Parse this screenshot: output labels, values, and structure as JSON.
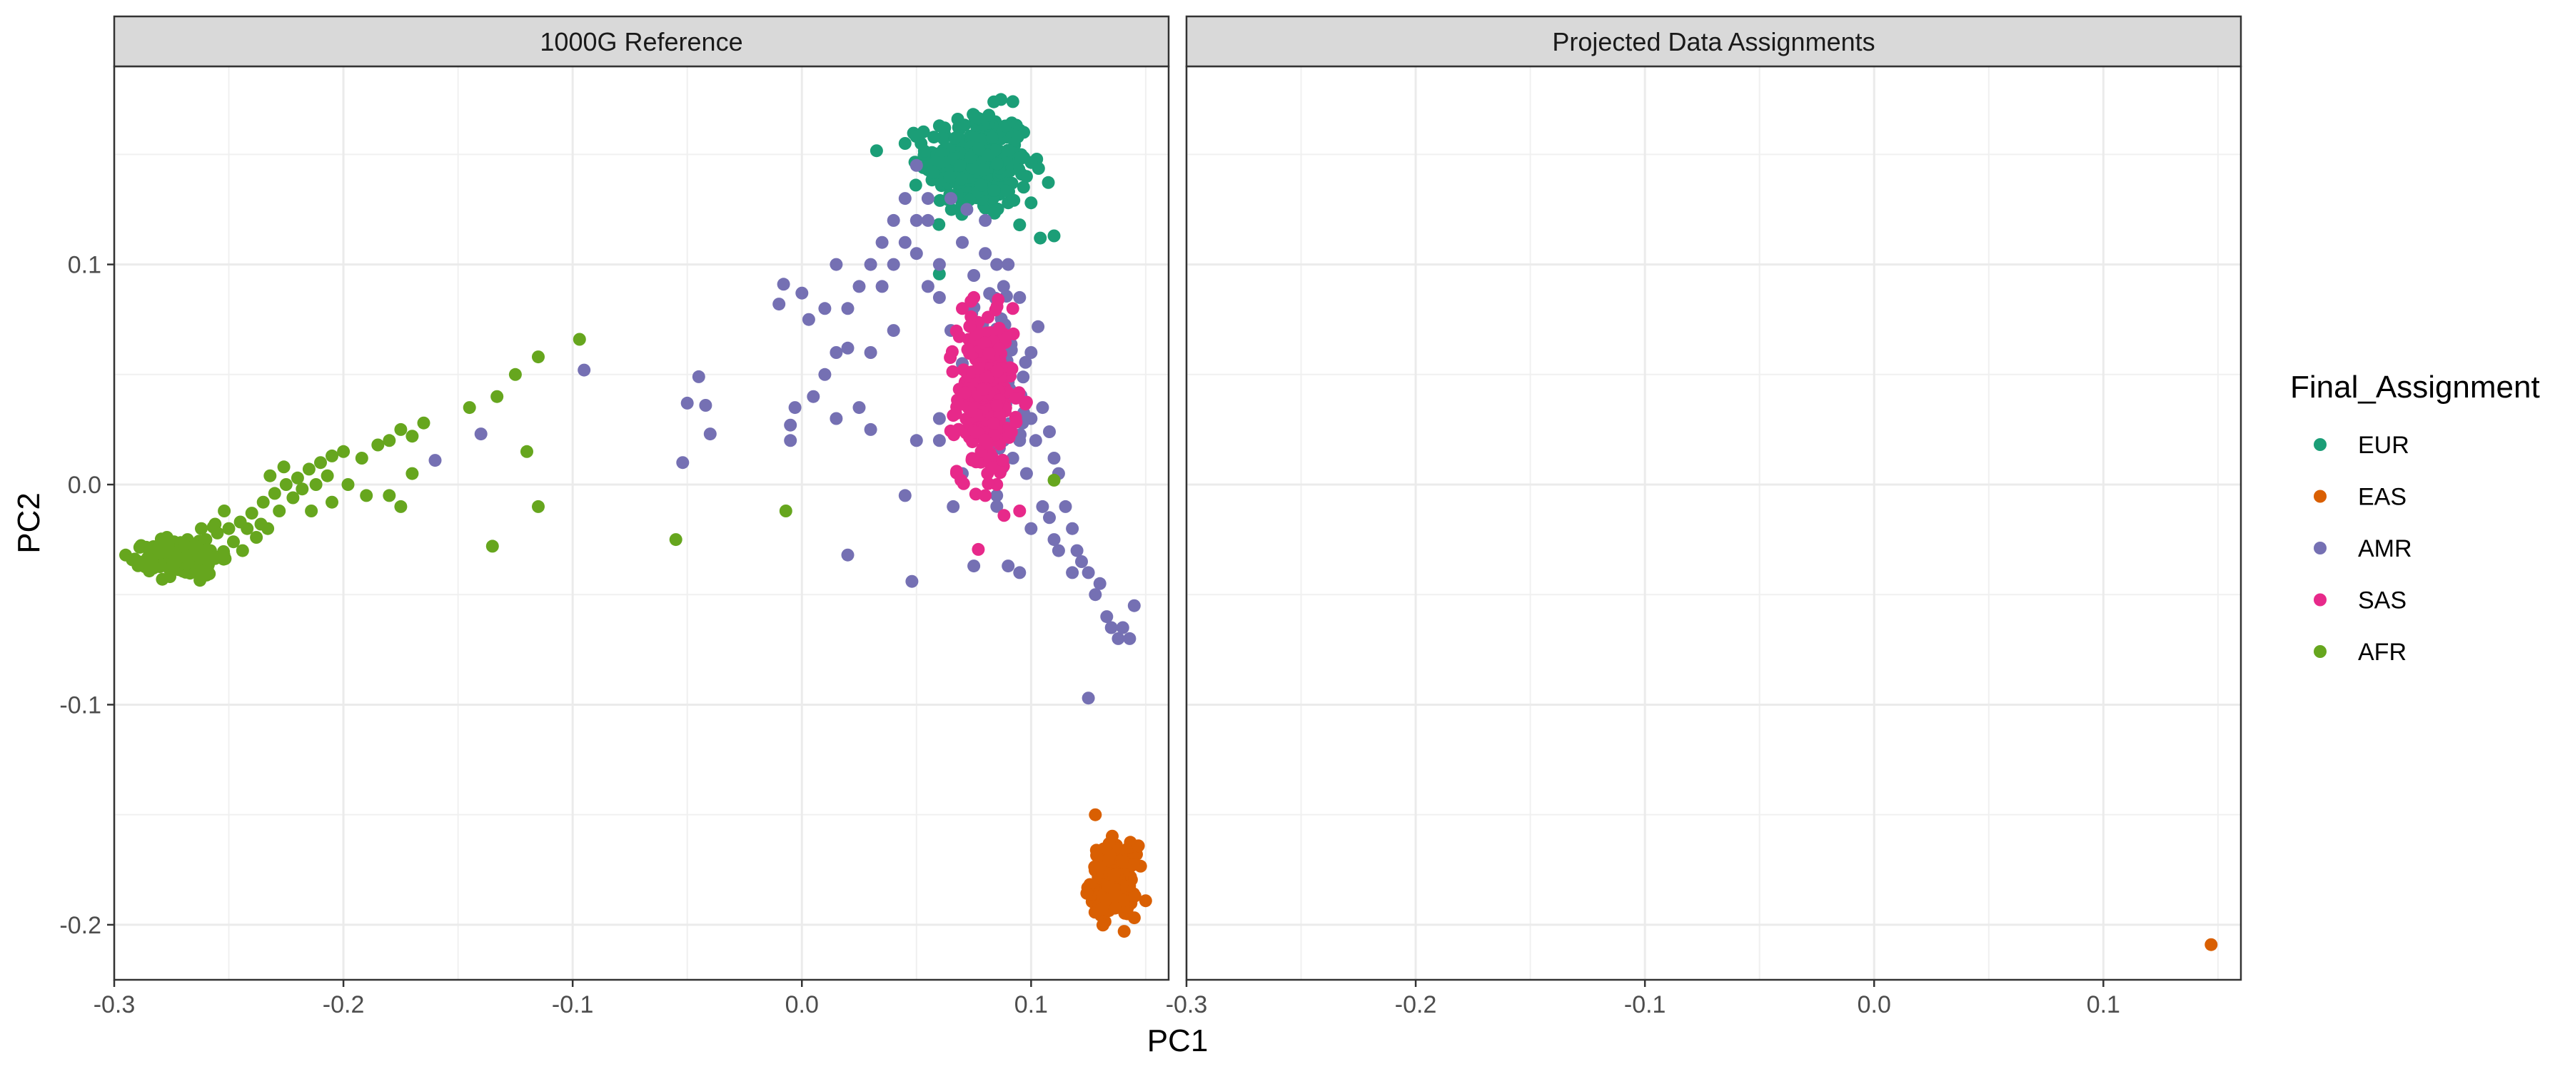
{
  "chart_data": {
    "type": "scatter",
    "xlabel": "PC1",
    "ylabel": "PC2",
    "xlim": [
      -0.3,
      0.16
    ],
    "ylim": [
      -0.225,
      0.19
    ],
    "x_ticks": [
      -0.3,
      -0.2,
      -0.1,
      0.0,
      0.1
    ],
    "x_tick_labels": [
      "-0.3",
      "-0.2",
      "-0.1",
      "0.0",
      "0.1"
    ],
    "y_ticks": [
      -0.2,
      -0.1,
      0.0,
      0.1
    ],
    "y_tick_labels": [
      "-0.2",
      "-0.1",
      "0.0",
      "0.1"
    ],
    "grid": true,
    "legend": {
      "title": "Final_Assignment",
      "position": "right",
      "entries": [
        {
          "label": "EUR",
          "color": "#1b9e77"
        },
        {
          "label": "EAS",
          "color": "#d95f02"
        },
        {
          "label": "AMR",
          "color": "#7570b3"
        },
        {
          "label": "SAS",
          "color": "#e7298a"
        },
        {
          "label": "AFR",
          "color": "#66a61e"
        }
      ]
    },
    "panels": [
      {
        "title": "1000G Reference",
        "series": [
          {
            "name": "EUR",
            "cluster": {
              "center": [
                0.077,
                0.146
              ],
              "spread": [
                0.011,
                0.012
              ],
              "count": 300
            },
            "points": [
              [
                0.045,
                0.155
              ],
              [
                0.052,
                0.155
              ],
              [
                0.053,
                0.144
              ],
              [
                0.055,
                0.143
              ],
              [
                0.104,
                0.112
              ],
              [
                0.11,
                0.113
              ],
              [
                0.09,
                0.128
              ],
              [
                0.095,
                0.118
              ],
              [
                0.06,
                0.163
              ],
              [
                0.068,
                0.166
              ],
              [
                0.075,
                0.168
              ],
              [
                0.082,
                0.166
              ],
              [
                0.098,
                0.14
              ],
              [
                0.1,
                0.128
              ]
            ]
          },
          {
            "name": "EAS",
            "cluster": {
              "center": [
                0.136,
                -0.18
              ],
              "spread": [
                0.005,
                0.008
              ],
              "count": 180
            },
            "points": [
              [
                0.128,
                -0.15
              ],
              [
                0.13,
                -0.19
              ],
              [
                0.142,
                -0.195
              ],
              [
                0.146,
                -0.168
              ]
            ]
          },
          {
            "name": "AMR",
            "cluster": {
              "center": [
                0.085,
                0.045
              ],
              "spread": [
                0.006,
                0.02
              ],
              "count": 80
            },
            "points": [
              [
                -0.16,
                0.011
              ],
              [
                -0.14,
                0.023
              ],
              [
                -0.095,
                0.052
              ],
              [
                -0.05,
                0.037
              ],
              [
                -0.045,
                0.049
              ],
              [
                -0.042,
                0.036
              ],
              [
                -0.04,
                0.023
              ],
              [
                -0.052,
                0.01
              ],
              [
                -0.003,
                0.035
              ],
              [
                -0.005,
                0.027
              ],
              [
                -0.008,
                0.091
              ],
              [
                -0.01,
                0.082
              ],
              [
                0.0,
                0.087
              ],
              [
                0.003,
                0.075
              ],
              [
                0.01,
                0.05
              ],
              [
                0.015,
                0.03
              ],
              [
                0.02,
                -0.032
              ],
              [
                0.025,
                0.035
              ],
              [
                0.03,
                0.025
              ],
              [
                0.04,
                0.07
              ],
              [
                0.045,
                -0.005
              ],
              [
                0.048,
                -0.044
              ],
              [
                0.05,
                0.02
              ],
              [
                0.06,
                0.02
              ],
              [
                0.025,
                0.09
              ],
              [
                0.03,
                0.1
              ],
              [
                0.035,
                0.11
              ],
              [
                0.04,
                0.12
              ],
              [
                0.045,
                0.11
              ],
              [
                0.05,
                0.105
              ],
              [
                0.055,
                0.09
              ],
              [
                0.06,
                0.1
              ],
              [
                0.065,
                0.13
              ],
              [
                0.07,
                0.11
              ],
              [
                0.075,
                0.095
              ],
              [
                0.08,
                0.12
              ],
              [
                0.085,
                0.1
              ],
              [
                0.09,
                0.1
              ],
              [
                0.095,
                0.085
              ],
              [
                0.1,
                0.06
              ],
              [
                0.015,
                0.06
              ],
              [
                0.02,
                0.08
              ],
              [
                0.03,
                0.06
              ],
              [
                0.035,
                0.09
              ],
              [
                0.04,
                0.1
              ],
              [
                0.05,
                0.12
              ],
              [
                0.055,
                0.13
              ],
              [
                0.06,
                0.085
              ],
              [
                0.065,
                0.07
              ],
              [
                0.07,
                0.055
              ],
              [
                0.075,
                0.04
              ],
              [
                0.078,
                0.025
              ],
              [
                0.082,
                0.015
              ],
              [
                0.088,
                0.02
              ],
              [
                0.092,
                0.012
              ],
              [
                0.095,
                0.02
              ],
              [
                0.1,
                0.03
              ],
              [
                0.102,
                0.02
              ],
              [
                0.105,
                0.035
              ],
              [
                0.108,
                0.024
              ],
              [
                0.11,
                0.012
              ],
              [
                0.112,
                0.005
              ],
              [
                0.115,
                -0.01
              ],
              [
                0.118,
                -0.02
              ],
              [
                0.12,
                -0.03
              ],
              [
                0.122,
                -0.035
              ],
              [
                0.125,
                -0.04
              ],
              [
                0.128,
                -0.05
              ],
              [
                0.13,
                -0.045
              ],
              [
                0.133,
                -0.06
              ],
              [
                0.135,
                -0.065
              ],
              [
                0.138,
                -0.07
              ],
              [
                0.14,
                -0.065
              ],
              [
                0.143,
                -0.07
              ],
              [
                0.145,
                -0.055
              ],
              [
                0.125,
                -0.097
              ],
              [
                0.075,
                -0.037
              ],
              [
                0.09,
                -0.037
              ],
              [
                0.095,
                -0.04
              ],
              [
                0.1,
                -0.02
              ],
              [
                0.105,
                -0.01
              ],
              [
                0.108,
                -0.015
              ],
              [
                0.11,
                -0.025
              ],
              [
                0.112,
                -0.03
              ],
              [
                0.118,
                -0.04
              ],
              [
                0.098,
                0.005
              ],
              [
                0.085,
                -0.005
              ],
              [
                0.07,
                0.005
              ],
              [
                0.066,
                -0.01
              ],
              [
                0.06,
                0.03
              ],
              [
                0.05,
                0.145
              ],
              [
                0.055,
                0.12
              ],
              [
                0.045,
                0.13
              ],
              [
                0.072,
                0.125
              ],
              [
                0.08,
                0.105
              ],
              [
                0.088,
                0.09
              ],
              [
                0.015,
                0.1
              ],
              [
                0.01,
                0.08
              ],
              [
                0.02,
                0.062
              ],
              [
                0.005,
                0.04
              ],
              [
                -0.005,
                0.02
              ]
            ]
          },
          {
            "name": "SAS",
            "cluster": {
              "center": [
                0.08,
                0.04
              ],
              "spread": [
                0.006,
                0.018
              ],
              "count": 280
            },
            "points": [
              [
                0.07,
                0.08
              ],
              [
                0.075,
                0.085
              ],
              [
                0.092,
                0.08
              ],
              [
                0.085,
                0.0
              ],
              [
                0.095,
                -0.012
              ],
              [
                0.08,
                -0.005
              ],
              [
                0.072,
                0.025
              ]
            ]
          },
          {
            "name": "AFR",
            "cluster": {
              "center": [
                -0.27,
                -0.033
              ],
              "spread": [
                0.008,
                0.004
              ],
              "count": 200
            },
            "points": [
              [
                -0.265,
                -0.028
              ],
              [
                -0.26,
                -0.025
              ],
              [
                -0.255,
                -0.022
              ],
              [
                -0.25,
                -0.02
              ],
              [
                -0.245,
                -0.017
              ],
              [
                -0.24,
                -0.013
              ],
              [
                -0.235,
                -0.008
              ],
              [
                -0.23,
                -0.004
              ],
              [
                -0.225,
                0.0
              ],
              [
                -0.22,
                0.003
              ],
              [
                -0.215,
                0.007
              ],
              [
                -0.21,
                0.01
              ],
              [
                -0.205,
                0.013
              ],
              [
                -0.2,
                0.015
              ],
              [
                -0.252,
                -0.012
              ],
              [
                -0.242,
                -0.02
              ],
              [
                -0.236,
                -0.018
              ],
              [
                -0.228,
                -0.012
              ],
              [
                -0.222,
                -0.006
              ],
              [
                -0.218,
                -0.002
              ],
              [
                -0.212,
                0.0
              ],
              [
                -0.207,
                0.004
              ],
              [
                -0.232,
                0.004
              ],
              [
                -0.226,
                0.008
              ],
              [
                -0.214,
                -0.012
              ],
              [
                -0.205,
                -0.008
              ],
              [
                -0.198,
                0.0
              ],
              [
                -0.192,
                0.012
              ],
              [
                -0.185,
                0.018
              ],
              [
                -0.18,
                0.02
              ],
              [
                -0.175,
                0.025
              ],
              [
                -0.17,
                0.022
              ],
              [
                -0.165,
                0.028
              ],
              [
                -0.19,
                -0.005
              ],
              [
                -0.18,
                -0.005
              ],
              [
                -0.175,
                -0.01
              ],
              [
                -0.17,
                0.005
              ],
              [
                -0.145,
                0.035
              ],
              [
                -0.133,
                0.04
              ],
              [
                -0.125,
                0.05
              ],
              [
                -0.115,
                0.058
              ],
              [
                -0.097,
                0.066
              ],
              [
                -0.12,
                0.015
              ],
              [
                -0.115,
                -0.01
              ],
              [
                -0.135,
                -0.028
              ],
              [
                -0.055,
                -0.025
              ],
              [
                -0.007,
                -0.012
              ],
              [
                0.11,
                0.002
              ],
              [
                -0.262,
                -0.035
              ],
              [
                -0.258,
                -0.03
              ],
              [
                -0.248,
                -0.026
              ],
              [
                -0.244,
                -0.03
              ],
              [
                -0.238,
                -0.024
              ],
              [
                -0.233,
                -0.02
              ],
              [
                -0.256,
                -0.018
              ],
              [
                -0.262,
                -0.02
              ],
              [
                -0.268,
                -0.025
              ],
              [
                -0.277,
                -0.024
              ],
              [
                -0.283,
                -0.038
              ],
              [
                -0.279,
                -0.043
              ]
            ]
          }
        ]
      },
      {
        "title": "Projected Data Assignments",
        "series": [
          {
            "name": "EAS",
            "points": [
              [
                0.147,
                -0.209
              ]
            ]
          }
        ]
      }
    ]
  }
}
